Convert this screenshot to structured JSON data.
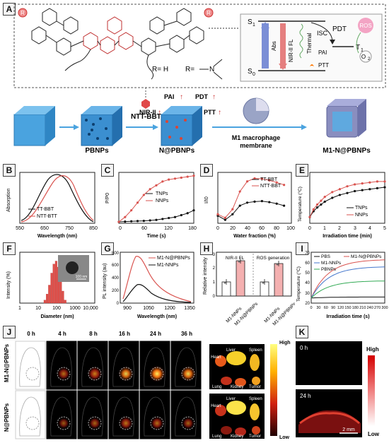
{
  "panel_labels": {
    "A": "A",
    "B": "B",
    "C": "C",
    "D": "D",
    "E": "E",
    "F": "F",
    "G": "G",
    "H": "H",
    "I": "I",
    "J": "J",
    "K": "K"
  },
  "panel_a": {
    "r_def": "R= H",
    "r_def2": "R=",
    "r_group": "R",
    "jablonski": {
      "s1": "S",
      "s1_sub": "1",
      "s0": "S",
      "s0_sub": "0",
      "t1": "T",
      "t1_sub": "1",
      "abs": "Abs",
      "fl": "NIR-II FL",
      "thermal": "Thermal",
      "isc": "ISC",
      "pdt": "PDT",
      "ros": "ROS",
      "o2": "O",
      "o2_sub": "2",
      "pai": "PAI",
      "ptt": "PTT"
    },
    "flow": {
      "pbnps": "PBNPs",
      "ntt_bbt": "NTT-BBT",
      "n_pbnps": "N@PBNPs",
      "m1_membrane_1": "M1 macrophage",
      "m1_membrane_2": "membrane",
      "m1_n_pbnps": "M1-N@PBNPs",
      "pai_up": "PAI",
      "pdt_up": "PDT",
      "nir_up": "NIR-II",
      "ptt_up": "PTT",
      "arrow_up": "↑"
    }
  },
  "chart_data": [
    {
      "id": "B",
      "type": "line",
      "xlabel": "Wavelength (nm)",
      "ylabel": "Absorption",
      "xlim": [
        550,
        850
      ],
      "xticks": [
        550,
        650,
        750,
        850
      ],
      "series": [
        {
          "name": "TT-BBT",
          "color": "#111111",
          "peak": 650
        },
        {
          "name": "NTT-BTT",
          "color": "#d9534f",
          "peak": 670
        }
      ]
    },
    {
      "id": "C",
      "type": "line",
      "xlabel": "Time (s)",
      "ylabel": "P/P0",
      "xlim": [
        0,
        180
      ],
      "xticks": [
        0,
        60,
        120,
        180
      ],
      "x": [
        0,
        15,
        30,
        45,
        60,
        75,
        90,
        105,
        120,
        135,
        150,
        165,
        180
      ],
      "series": [
        {
          "name": "TNPs",
          "color": "#111111",
          "values": [
            0,
            0.3,
            0.6,
            0.8,
            1,
            1.5,
            2,
            3,
            4,
            5,
            7,
            9,
            12
          ]
        },
        {
          "name": "NNPs",
          "color": "#d9534f",
          "values": [
            0,
            5,
            12,
            20,
            28,
            34,
            38,
            42,
            44,
            45,
            46,
            47,
            48
          ]
        }
      ]
    },
    {
      "id": "D",
      "type": "line",
      "xlabel": "Water fraction (%)",
      "ylabel": "I/I0",
      "xlim": [
        0,
        100
      ],
      "xticks": [
        0,
        20,
        40,
        60,
        80,
        100
      ],
      "x": [
        0,
        10,
        20,
        30,
        40,
        50,
        60,
        70,
        80,
        90
      ],
      "series": [
        {
          "name": "TT-BBT",
          "color": "#111111",
          "values": [
            1.2,
            0.4,
            1.5,
            3.2,
            3.8,
            4.0,
            4.1,
            3.9,
            3.6,
            3.2
          ]
        },
        {
          "name": "NTT-BBT",
          "color": "#d9534f",
          "values": [
            1.5,
            0.8,
            2.5,
            6.0,
            8.0,
            8.6,
            8.5,
            8.2,
            7.8,
            7.3
          ]
        }
      ]
    },
    {
      "id": "E",
      "type": "line",
      "xlabel": "Irradiation time (min)",
      "ylabel": "Temperature (°C)",
      "xlim": [
        0,
        5
      ],
      "xticks": [
        0,
        1,
        2,
        3,
        4,
        5
      ],
      "x": [
        0,
        0.25,
        0.5,
        0.75,
        1,
        1.5,
        2,
        2.5,
        3,
        3.5,
        4,
        4.5,
        5
      ],
      "series": [
        {
          "name": "TNPs",
          "color": "#111111",
          "values": [
            25,
            31,
            35,
            38,
            41,
            45,
            48,
            50,
            52,
            53,
            54,
            55,
            56
          ]
        },
        {
          "name": "NNPs",
          "color": "#d9534f",
          "values": [
            25,
            33,
            38,
            42,
            46,
            51,
            54,
            57,
            59,
            60,
            61,
            62,
            62
          ]
        }
      ]
    },
    {
      "id": "F",
      "type": "bar",
      "xlabel": "Diameter (nm)",
      "ylabel": "Intensity (%)",
      "xticks": [
        "1",
        "10",
        "100",
        "1000",
        "10,000"
      ],
      "inset_scale": "100 nm",
      "values": [
        1,
        3,
        6,
        10,
        13,
        14,
        12,
        8,
        4,
        1
      ]
    },
    {
      "id": "G",
      "type": "line",
      "xlabel": "Wavelength (nm)",
      "ylabel": "PL intensity (au)",
      "xticks": [
        900,
        1050,
        1200,
        1350
      ],
      "yticks": [
        0,
        200,
        400,
        600,
        800
      ],
      "series": [
        {
          "name": "M1-N@PBNPs",
          "color": "#d9534f",
          "peak": 780
        },
        {
          "name": "M1-NNPs",
          "color": "#111111",
          "peak": 330
        }
      ]
    },
    {
      "id": "H",
      "type": "bar",
      "ylabel": "Relative intensity",
      "group_labels": [
        "NIR-II FL",
        "ROS generation"
      ],
      "categories": [
        "M1-NNPs",
        "M1-N@PBNPs",
        "M1-NNPs",
        "M1-N@PBNPs"
      ],
      "values": [
        1.0,
        2.5,
        1.0,
        2.3
      ],
      "yticks": [
        0,
        1,
        2,
        3
      ]
    },
    {
      "id": "I",
      "type": "line",
      "xlabel": "Irradiation time (s)",
      "ylabel": "Temperature (°C)",
      "xticks": [
        0,
        30,
        60,
        90,
        120,
        150,
        180,
        210,
        240,
        270,
        300
      ],
      "yticks": [
        20,
        30,
        40,
        50,
        60,
        70
      ],
      "series": [
        {
          "name": "PBS",
          "color": "#111111",
          "final": 26
        },
        {
          "name": "M1-N@PBNPs",
          "color": "#d9534f",
          "final": 63
        },
        {
          "name": "M1-NNPs",
          "color": "#4477cc",
          "final": 56
        },
        {
          "name": "PBNPs",
          "color": "#33aa55",
          "final": 42
        }
      ]
    }
  ],
  "panel_j": {
    "times": [
      "0 h",
      "4 h",
      "8 h",
      "16 h",
      "24 h",
      "36 h"
    ],
    "rows": [
      "M1-N@PBNPs",
      "N@PBNPs"
    ],
    "organs": {
      "liver": "Liver",
      "heart": "Heart",
      "spleen": "Spleen",
      "lung": "Lung",
      "kidney": "Kidney",
      "tumor": "Tumor"
    },
    "scale_high": "High",
    "scale_low": "Low"
  },
  "panel_k": {
    "t0": "0 h",
    "t24": "24 h",
    "scale_bar": "2 mm",
    "scale_high": "High",
    "scale_low": "Low"
  }
}
